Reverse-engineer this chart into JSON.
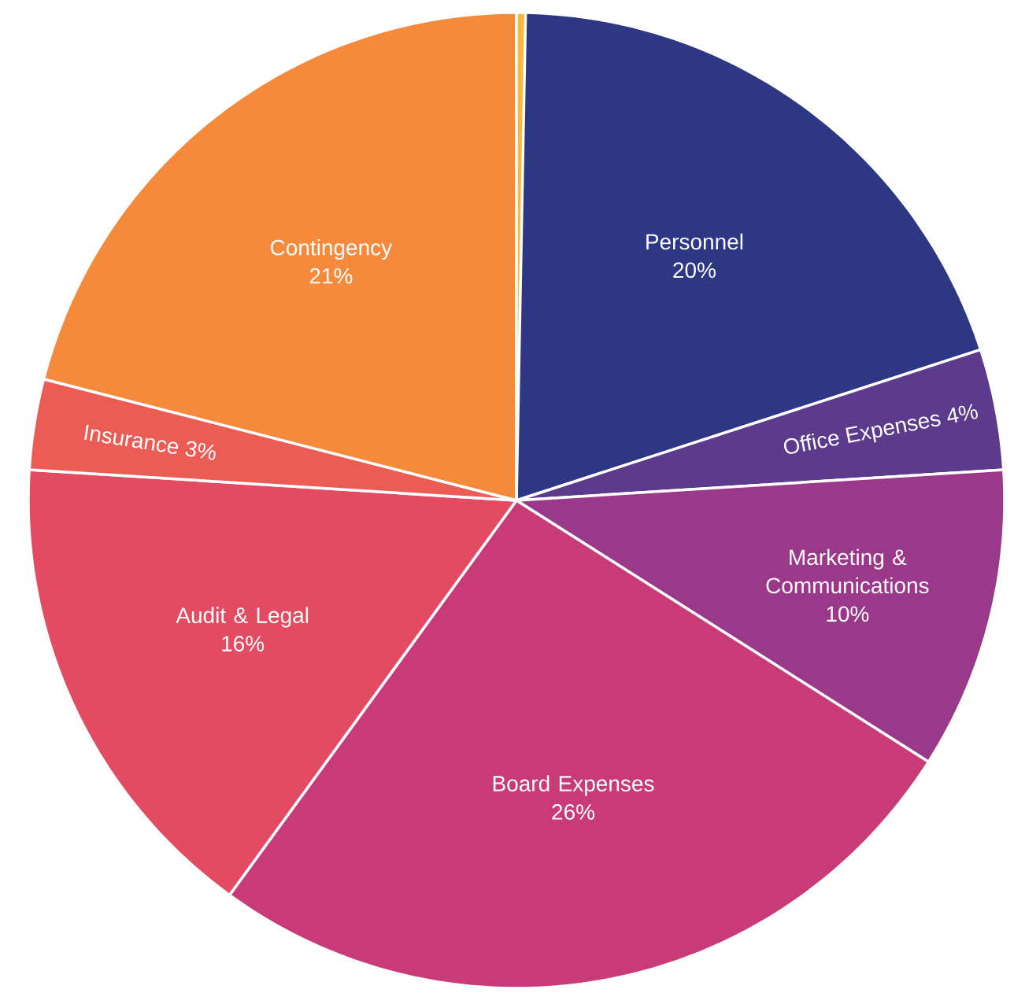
{
  "chart_data": {
    "type": "pie",
    "categories": [
      "Personnel",
      "Office Expenses",
      "Marketing & Communications",
      "Board Expenses",
      "Audit & Legal",
      "Insurance",
      "Contingency",
      null
    ],
    "values": [
      20,
      4,
      10,
      26,
      16,
      3,
      21,
      0.3
    ],
    "value_labels": [
      "20%",
      "4%",
      "10%",
      "26%",
      "16%",
      "3%",
      "21%",
      null
    ],
    "colors": [
      "#2e3784",
      "#5c3a8c",
      "#9a3889",
      "#c93a79",
      "#e34b62",
      "#eb5c55",
      "#f58a3c",
      "#f9b83f"
    ]
  }
}
